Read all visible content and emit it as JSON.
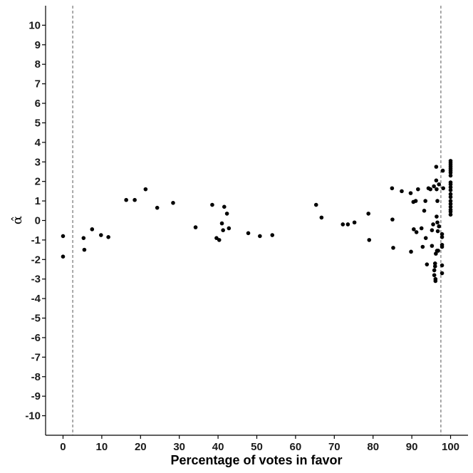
{
  "chart_data": {
    "type": "scatter",
    "title": "",
    "xlabel": "Percentage of votes in favor",
    "ylabel": "α̂",
    "xlim": [
      -4.5,
      104.5
    ],
    "ylim": [
      -11.0,
      11.0
    ],
    "xticks": [
      0,
      10,
      20,
      30,
      40,
      50,
      60,
      70,
      80,
      90,
      100
    ],
    "yticks": [
      -10,
      -9,
      -8,
      -7,
      -6,
      -5,
      -4,
      -3,
      -2,
      -1,
      0,
      1,
      2,
      3,
      4,
      5,
      6,
      7,
      8,
      9,
      10
    ],
    "grid": false,
    "legend": "none",
    "reference_lines": {
      "x": [
        2.5,
        97.5
      ],
      "style": "dashed"
    },
    "colors": {
      "points": "#000000",
      "axes": "#000000",
      "ticks": "#1a1a1a",
      "reference": "#555555"
    },
    "series": [
      {
        "points": [
          [
            0,
            -0.8
          ],
          [
            0,
            -1.85
          ],
          [
            5.3,
            -0.9
          ],
          [
            5.5,
            -1.5
          ],
          [
            7.5,
            -0.45
          ],
          [
            9.8,
            -0.75
          ],
          [
            11.7,
            -0.85
          ],
          [
            16.3,
            1.05
          ],
          [
            18.5,
            1.05
          ],
          [
            21.3,
            1.6
          ],
          [
            24.3,
            0.65
          ],
          [
            28.4,
            0.9
          ],
          [
            34.2,
            -0.35
          ],
          [
            38.5,
            0.8
          ],
          [
            39.6,
            -0.9
          ],
          [
            40.3,
            -1.0
          ],
          [
            41.0,
            -0.15
          ],
          [
            41.3,
            -0.5
          ],
          [
            41.6,
            0.7
          ],
          [
            42.3,
            0.35
          ],
          [
            42.8,
            -0.4
          ],
          [
            47.8,
            -0.65
          ],
          [
            50.8,
            -0.8
          ],
          [
            54.0,
            -0.75
          ],
          [
            65.3,
            0.8
          ],
          [
            66.7,
            0.15
          ],
          [
            72.2,
            -0.2
          ],
          [
            73.5,
            -0.2
          ],
          [
            75.2,
            -0.1
          ],
          [
            78.8,
            0.35
          ],
          [
            79.0,
            -1.0
          ],
          [
            84.9,
            1.65
          ],
          [
            85.0,
            0.05
          ],
          [
            85.2,
            -1.4
          ],
          [
            87.4,
            1.5
          ],
          [
            89.7,
            1.4
          ],
          [
            89.8,
            -1.6
          ],
          [
            90.4,
            0.95
          ],
          [
            90.5,
            -0.45
          ],
          [
            91.0,
            1.0
          ],
          [
            91.2,
            -0.6
          ],
          [
            91.6,
            1.6
          ],
          [
            92.5,
            -0.4
          ],
          [
            92.8,
            -1.35
          ],
          [
            93.2,
            0.5
          ],
          [
            93.5,
            1.0
          ],
          [
            93.6,
            -0.9
          ],
          [
            93.9,
            -2.25
          ],
          [
            94.3,
            1.65
          ],
          [
            94.8,
            1.6
          ],
          [
            95.2,
            -1.3
          ],
          [
            95.2,
            -0.5
          ],
          [
            95.5,
            -0.2
          ],
          [
            95.7,
            1.75
          ],
          [
            95.8,
            -2.55
          ],
          [
            95.8,
            -2.8
          ],
          [
            96.0,
            -2.2
          ],
          [
            96.0,
            -2.35
          ],
          [
            96.1,
            -3.0
          ],
          [
            96.1,
            -3.1
          ],
          [
            96.2,
            -1.7
          ],
          [
            96.3,
            2.75
          ],
          [
            96.3,
            2.05
          ],
          [
            96.4,
            1.6
          ],
          [
            96.4,
            0.2
          ],
          [
            96.5,
            -1.55
          ],
          [
            96.6,
            1.0
          ],
          [
            96.6,
            -0.1
          ],
          [
            96.7,
            -0.55
          ],
          [
            96.8,
            -1.55
          ],
          [
            97.0,
            1.85
          ],
          [
            97.0,
            -0.3
          ],
          [
            97.8,
            -0.7
          ],
          [
            97.8,
            -0.85
          ],
          [
            97.8,
            -1.25
          ],
          [
            97.8,
            -1.35
          ],
          [
            97.8,
            -2.3
          ],
          [
            97.8,
            -2.7
          ],
          [
            98.0,
            2.55
          ],
          [
            98.1,
            1.65
          ],
          [
            100,
            3.05
          ],
          [
            100,
            2.95
          ],
          [
            100,
            2.85
          ],
          [
            100,
            2.75
          ],
          [
            100,
            2.65
          ],
          [
            100,
            2.55
          ],
          [
            100,
            2.45
          ],
          [
            100,
            2.3
          ],
          [
            100,
            1.95
          ],
          [
            100,
            1.85
          ],
          [
            100,
            1.7
          ],
          [
            100,
            1.55
          ],
          [
            100,
            1.35
          ],
          [
            100,
            1.2
          ],
          [
            100,
            1.0
          ],
          [
            100,
            0.85
          ],
          [
            100,
            0.7
          ],
          [
            100,
            0.55
          ],
          [
            100,
            0.45
          ],
          [
            100,
            0.3
          ]
        ]
      }
    ]
  }
}
